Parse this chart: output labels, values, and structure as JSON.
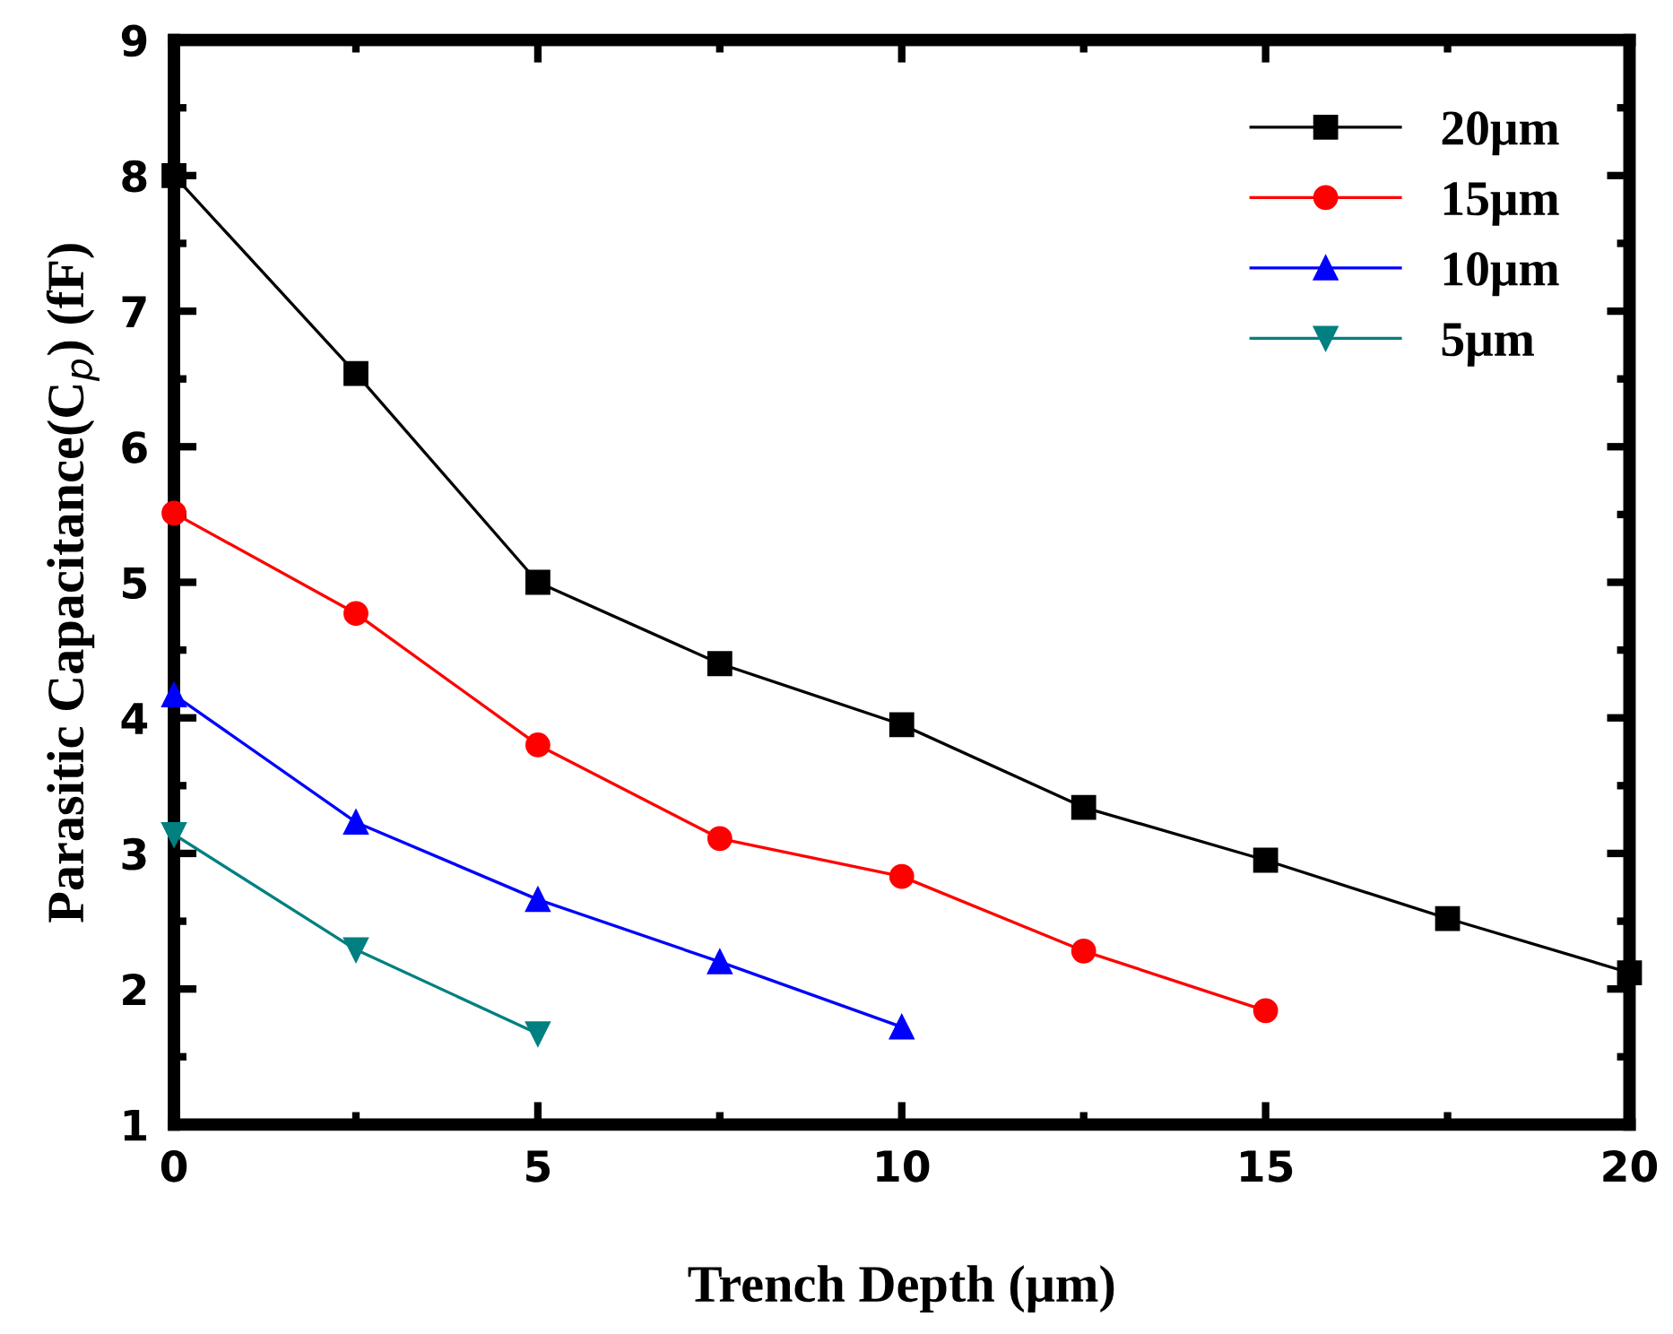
{
  "chart_data": {
    "type": "line",
    "xlabel": "Trench Depth (μm)",
    "ylabel": "Parasitic Capacitance(C$_{p}$) (fF)",
    "xlim": [
      0,
      20
    ],
    "ylim": [
      1,
      9
    ],
    "xticks": [
      0,
      5,
      10,
      15,
      20
    ],
    "yticks": [
      1,
      2,
      3,
      4,
      5,
      6,
      7,
      8,
      9
    ],
    "grid": false,
    "legend": "top right",
    "line_style": "solid",
    "series": [
      {
        "name": "20μm",
        "color": "#000000",
        "marker": "square",
        "x": [
          0,
          2.5,
          5,
          7.5,
          10,
          12.5,
          15,
          17.5,
          20
        ],
        "values": [
          8.0,
          6.54,
          5.0,
          4.4,
          3.95,
          3.34,
          2.95,
          2.52,
          2.12
        ]
      },
      {
        "name": "15μm",
        "color": "#ff0000",
        "marker": "circle",
        "x": [
          0,
          2.5,
          5,
          7.5,
          10,
          12.5,
          15
        ],
        "values": [
          5.51,
          4.77,
          3.8,
          3.11,
          2.83,
          2.28,
          1.84
        ]
      },
      {
        "name": "10μm",
        "color": "#0000ff",
        "marker": "triangle",
        "x": [
          0,
          2.5,
          5,
          7.5,
          10
        ],
        "values": [
          4.17,
          3.23,
          2.66,
          2.2,
          1.72
        ]
      },
      {
        "name": "5μm",
        "color": "#008080",
        "marker": "triangle_down",
        "x": [
          0,
          2.5,
          5
        ],
        "values": [
          3.14,
          2.29,
          1.67
        ]
      }
    ]
  }
}
